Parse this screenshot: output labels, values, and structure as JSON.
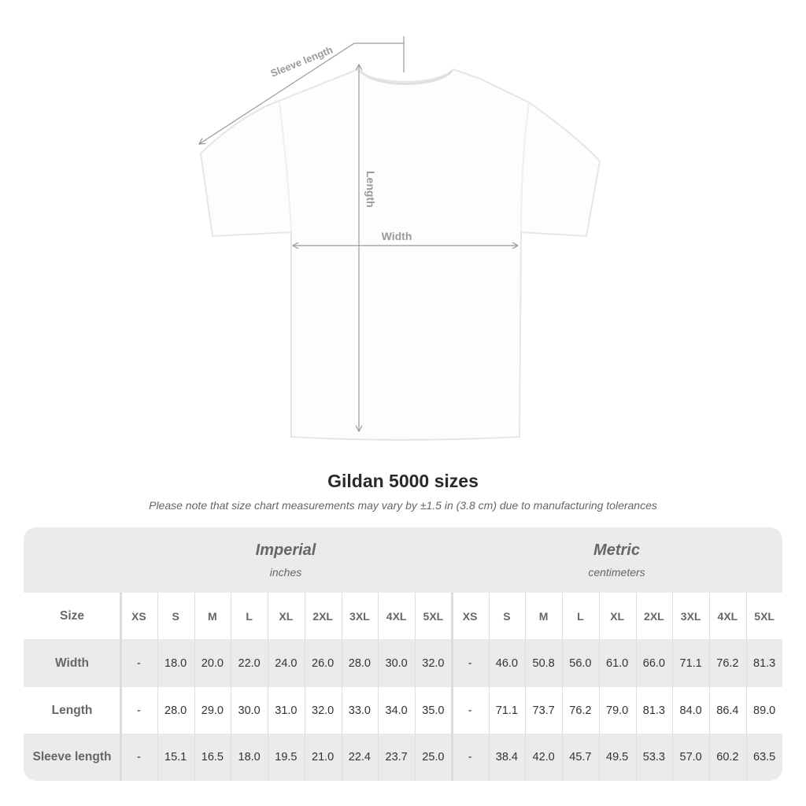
{
  "diagram": {
    "labels": {
      "sleeve": "Sleeve length",
      "length": "Length",
      "width": "Width"
    },
    "line_color": "#9a9a9a"
  },
  "title": "Gildan 5000 sizes",
  "note": "Please note that size chart measurements may vary by ±1.5 in (3.8 cm) due to manufacturing tolerances",
  "table": {
    "imperial": {
      "name": "Imperial",
      "unit": "inches"
    },
    "metric": {
      "name": "Metric",
      "unit": "centimeters"
    },
    "size_label": "Size",
    "sizes": [
      "XS",
      "S",
      "M",
      "L",
      "XL",
      "2XL",
      "3XL",
      "4XL",
      "5XL"
    ],
    "rows": [
      {
        "label": "Width",
        "imperial": [
          "-",
          "18.0",
          "20.0",
          "22.0",
          "24.0",
          "26.0",
          "28.0",
          "30.0",
          "32.0"
        ],
        "metric": [
          "-",
          "46.0",
          "50.8",
          "56.0",
          "61.0",
          "66.0",
          "71.1",
          "76.2",
          "81.3"
        ]
      },
      {
        "label": "Length",
        "imperial": [
          "-",
          "28.0",
          "29.0",
          "30.0",
          "31.0",
          "32.0",
          "33.0",
          "34.0",
          "35.0"
        ],
        "metric": [
          "-",
          "71.1",
          "73.7",
          "76.2",
          "79.0",
          "81.3",
          "84.0",
          "86.4",
          "89.0"
        ]
      },
      {
        "label": "Sleeve length",
        "imperial": [
          "-",
          "15.1",
          "16.5",
          "18.0",
          "19.5",
          "21.0",
          "22.4",
          "23.7",
          "25.0"
        ],
        "metric": [
          "-",
          "38.4",
          "42.0",
          "45.7",
          "49.5",
          "53.3",
          "57.0",
          "60.2",
          "63.5"
        ]
      }
    ],
    "band_color": "#ebebeb"
  }
}
